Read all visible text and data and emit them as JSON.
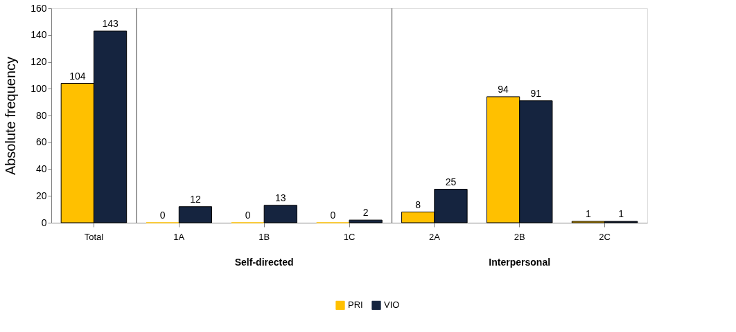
{
  "chart_data": {
    "type": "bar",
    "ylabel": "Absolute frequency",
    "categories": [
      "Total",
      "1A",
      "1B",
      "1C",
      "2A",
      "2B",
      "2C"
    ],
    "series": [
      {
        "name": "PRI",
        "color": "#ffc000",
        "values": [
          104,
          0,
          0,
          0,
          8,
          94,
          1
        ]
      },
      {
        "name": "VIO",
        "color": "#15243f",
        "values": [
          143,
          12,
          13,
          2,
          25,
          91,
          1
        ]
      }
    ],
    "ylim": [
      0,
      160
    ],
    "yticks": [
      0,
      20,
      40,
      60,
      80,
      100,
      120,
      140,
      160
    ],
    "grid": false,
    "legend": "bottom",
    "data_labels": true,
    "annotations": [
      "Self-directed",
      "Interpersonal"
    ]
  }
}
